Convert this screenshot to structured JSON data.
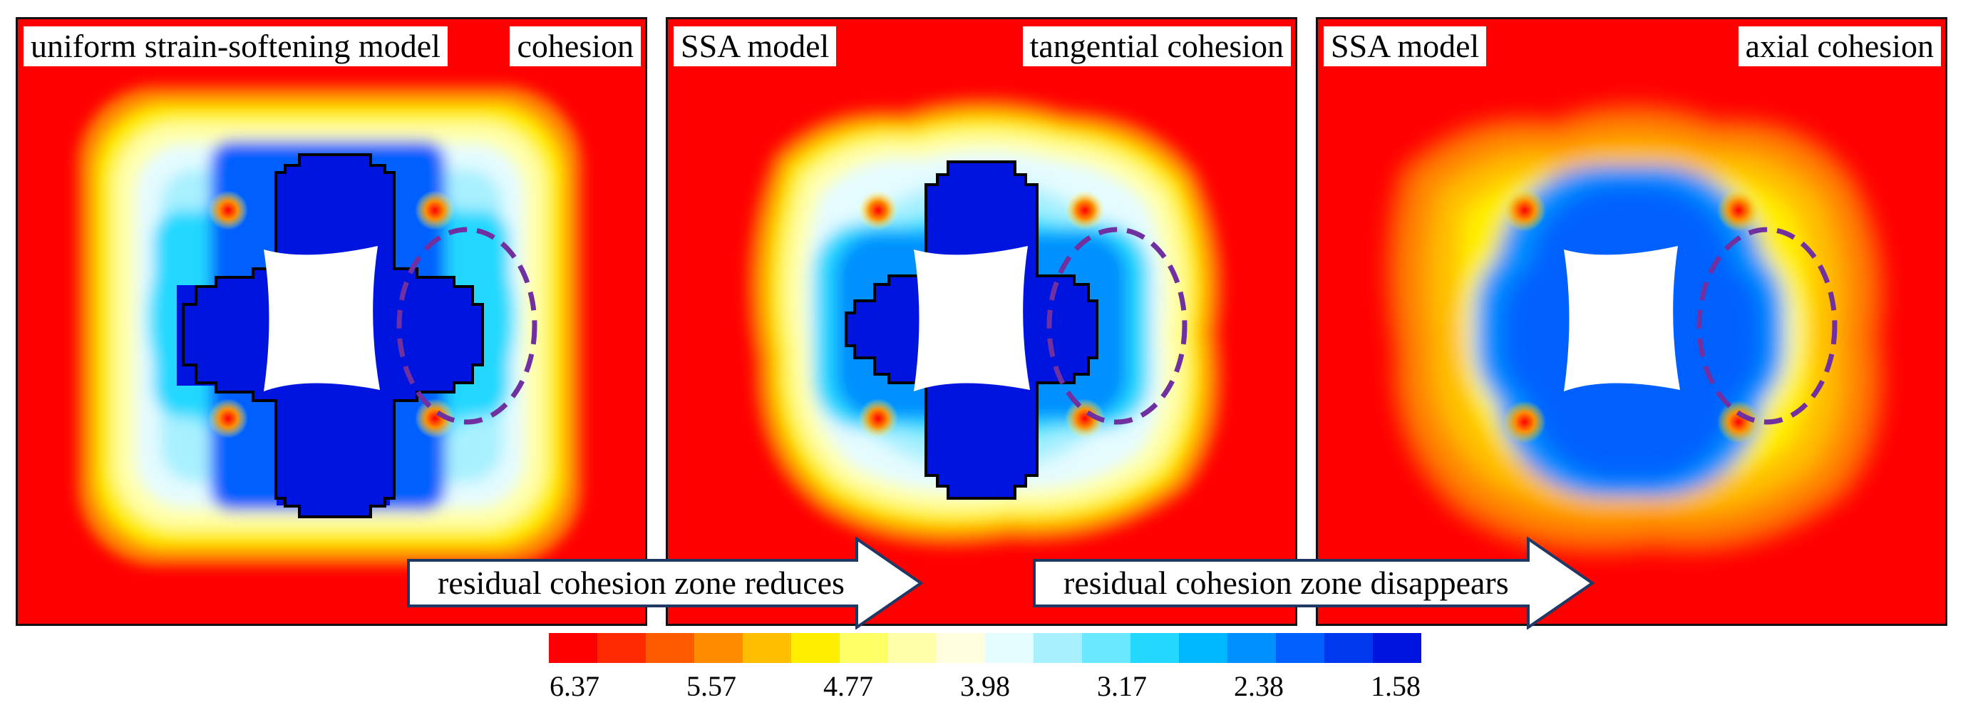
{
  "panels": [
    {
      "left_label": "uniform strain-softening model",
      "right_label": "cohesion"
    },
    {
      "left_label": "SSA model",
      "right_label": "tangential cohesion"
    },
    {
      "left_label": "SSA model",
      "right_label": "axial cohesion"
    }
  ],
  "arrows": [
    {
      "text": "residual cohesion zone reduces"
    },
    {
      "text": "residual cohesion zone disappears"
    }
  ],
  "colorbar": {
    "colors": [
      "#ff0000",
      "#ff2a00",
      "#ff5a00",
      "#ff8c00",
      "#ffbe00",
      "#ffee00",
      "#ffff66",
      "#ffffaa",
      "#ffffe0",
      "#e4fbff",
      "#a8f0ff",
      "#6ae8ff",
      "#22d8ff",
      "#00b8ff",
      "#0090ff",
      "#0060ff",
      "#0038f0",
      "#0014e0"
    ],
    "ticks": [
      "6.37",
      "5.57",
      "4.77",
      "3.98",
      "3.17",
      "2.38",
      "1.58"
    ]
  },
  "ellipse_color": "#7030a0"
}
